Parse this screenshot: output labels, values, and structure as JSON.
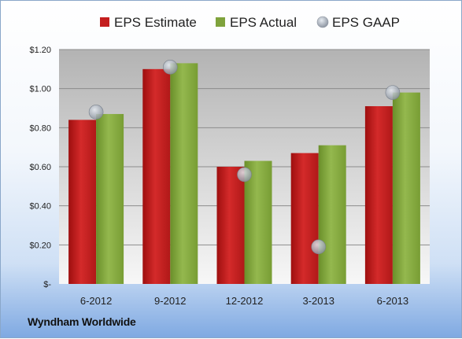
{
  "company": "Wyndham Worldwide",
  "chart_data": {
    "type": "bar",
    "categories": [
      "6-2012",
      "9-2012",
      "12-2012",
      "3-2013",
      "6-2013"
    ],
    "series": [
      {
        "name": "EPS Estimate",
        "type": "bar",
        "color": "#c41e1e",
        "values": [
          0.84,
          1.1,
          0.6,
          0.67,
          0.91
        ]
      },
      {
        "name": "EPS Actual",
        "type": "bar",
        "color": "#7fa33c",
        "values": [
          0.87,
          1.13,
          0.63,
          0.71,
          0.98
        ]
      },
      {
        "name": "EPS GAAP",
        "type": "scatter",
        "color": "#a9b2bf",
        "values": [
          0.88,
          1.11,
          0.56,
          0.19,
          0.98
        ]
      }
    ],
    "ylim": [
      0,
      1.2
    ],
    "yticks": [
      {
        "value": 0,
        "label": "$-"
      },
      {
        "value": 0.2,
        "label": "$0.20"
      },
      {
        "value": 0.4,
        "label": "$0.40"
      },
      {
        "value": 0.6,
        "label": "$0.60"
      },
      {
        "value": 0.8,
        "label": "$0.80"
      },
      {
        "value": 1.0,
        "label": "$1.00"
      },
      {
        "value": 1.2,
        "label": "$1.20"
      }
    ],
    "grid": true,
    "legend_position": "top"
  }
}
